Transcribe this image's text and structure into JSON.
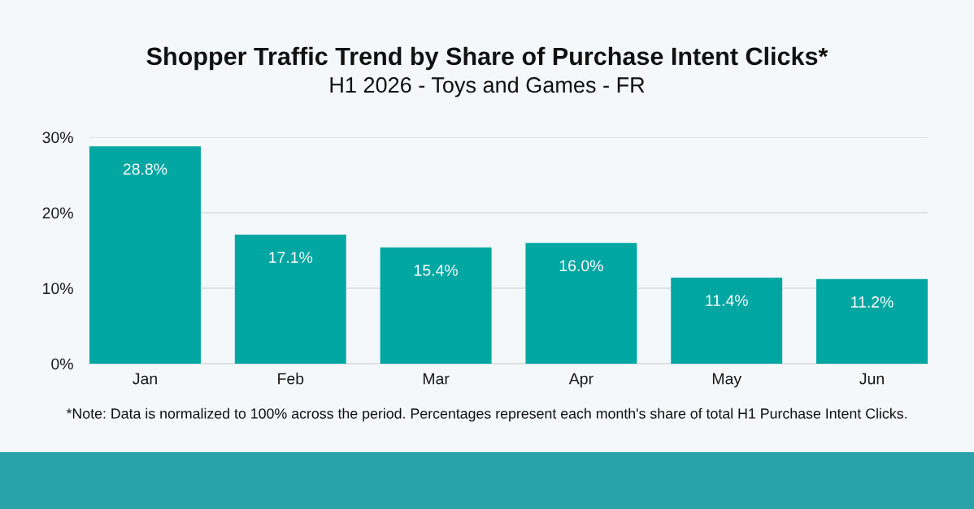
{
  "chart_data": {
    "type": "bar",
    "title": "Shopper Traffic Trend by Share of Purchase Intent Clicks*",
    "subtitle": "H1 2026 - Toys and Games - FR",
    "categories": [
      "Jan",
      "Feb",
      "Mar",
      "Apr",
      "May",
      "Jun"
    ],
    "values": [
      28.8,
      17.1,
      15.4,
      16.0,
      11.4,
      11.2
    ],
    "color": "#00a7a2",
    "value_labels": [
      "28.8%",
      "17.1%",
      "15.4%",
      "16.0%",
      "11.4%",
      "11.2%"
    ],
    "ylim": [
      0,
      30
    ],
    "yticks": [
      {
        "value": 0,
        "label": "0%"
      },
      {
        "value": 10,
        "label": "10%"
      },
      {
        "value": 20,
        "label": "20%"
      },
      {
        "value": 30,
        "label": "30%"
      }
    ],
    "grid": "y",
    "annotations": [
      "*Note: Data is normalized to 100% across the period. Percentages represent each month's share of total H1 Purchase Intent Clicks."
    ]
  }
}
